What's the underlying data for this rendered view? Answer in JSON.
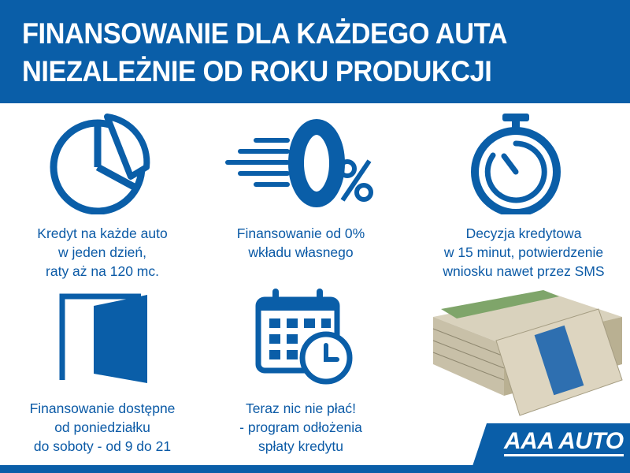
{
  "header": {
    "line1": "FINANSOWANIE DLA KAŻDEGO AUTA",
    "line2": "NIEZALEŻNIE OD ROKU PRODUKCJI"
  },
  "features": [
    {
      "icon": "pie-chart-icon",
      "lines": [
        "Kredyt na każde auto",
        "w jeden dzień,",
        "raty aż na 120 mc."
      ]
    },
    {
      "icon": "zero-percent-icon",
      "lines": [
        "Finansowanie od 0%",
        "wkładu własnego"
      ]
    },
    {
      "icon": "stopwatch-icon",
      "lines": [
        "Decyzja kredytowa",
        "w 15 minut, potwierdzenie",
        "wniosku nawet przez SMS"
      ]
    },
    {
      "icon": "open-door-icon",
      "lines": [
        "Finansowanie dostępne",
        "od poniedziałku",
        "do soboty - od 9 do 21"
      ]
    },
    {
      "icon": "calendar-clock-icon",
      "lines": [
        "Teraz nic nie płać!",
        "- program odłożenia",
        "spłaty kredytu"
      ]
    }
  ],
  "logo": {
    "text": "AAA AUTO"
  },
  "colors": {
    "brand_blue": "#0a5ea8",
    "text_blue": "#0b5aa6"
  }
}
